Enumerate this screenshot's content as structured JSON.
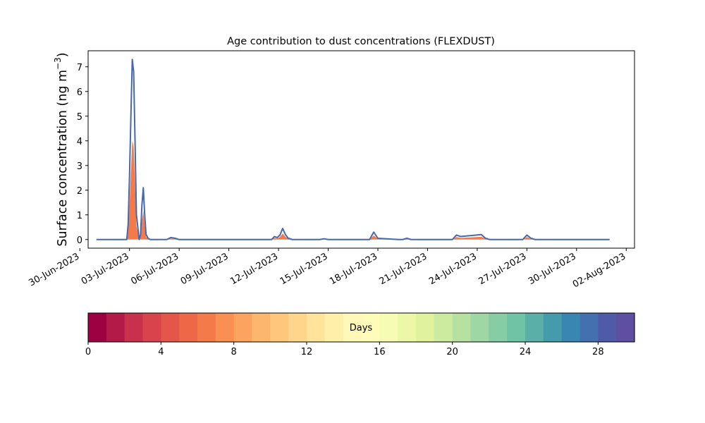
{
  "chart_data": {
    "type": "area",
    "title": "Age contribution to dust concentrations (FLEXDUST)",
    "ylabel": "Surface concentration (ng m",
    "ylabel_sup": "−3",
    "ylabel_close": ")",
    "ylim": [
      -0.35,
      7.65
    ],
    "yticks": [
      0,
      1,
      2,
      3,
      4,
      5,
      6,
      7
    ],
    "xlim": [
      "2023-06-30T12:00",
      "2023-08-02T12:00"
    ],
    "xtick_dates": [
      "2023-06-30",
      "2023-07-03",
      "2023-07-06",
      "2023-07-09",
      "2023-07-12",
      "2023-07-15",
      "2023-07-18",
      "2023-07-21",
      "2023-07-24",
      "2023-07-27",
      "2023-07-30",
      "2023-08-02"
    ],
    "xtick_labels": [
      "30-Jun-2023",
      "03-Jul-2023",
      "06-Jul-2023",
      "09-Jul-2023",
      "12-Jul-2023",
      "15-Jul-2023",
      "18-Jul-2023",
      "21-Jul-2023",
      "24-Jul-2023",
      "27-Jul-2023",
      "30-Jul-2023",
      "02-Aug-2023"
    ],
    "series_start": "2023-07-01T00:00",
    "series_end": "2023-08-01T00:00",
    "total": {
      "x": [
        "2023-07-01T00:00",
        "2023-07-02T20:00",
        "2023-07-02T22:00",
        "2023-07-03T00:00",
        "2023-07-03T02:00",
        "2023-07-03T04:00",
        "2023-07-03T06:00",
        "2023-07-03T08:00",
        "2023-07-03T10:00",
        "2023-07-03T14:00",
        "2023-07-03T16:00",
        "2023-07-03T18:00",
        "2023-07-03T20:00",
        "2023-07-03T22:00",
        "2023-07-04T00:00",
        "2023-07-04T03:00",
        "2023-07-04T06:00",
        "2023-07-05T06:00",
        "2023-07-05T12:00",
        "2023-07-05T18:00",
        "2023-07-06T00:00",
        "2023-07-11T14:00",
        "2023-07-11T18:00",
        "2023-07-11T22:00",
        "2023-07-12T02:00",
        "2023-07-12T06:00",
        "2023-07-12T10:00",
        "2023-07-12T14:00",
        "2023-07-12T20:00",
        "2023-07-13T06:00",
        "2023-07-14T12:00",
        "2023-07-14T18:00",
        "2023-07-15T00:00",
        "2023-07-17T12:00",
        "2023-07-17T18:00",
        "2023-07-18T00:00",
        "2023-07-19T06:00",
        "2023-07-19T12:00",
        "2023-07-19T18:00",
        "2023-07-20T00:00",
        "2023-07-22T12:00",
        "2023-07-22T18:00",
        "2023-07-23T00:00",
        "2023-07-24T06:00",
        "2023-07-24T12:00",
        "2023-07-24T18:00",
        "2023-07-25T00:00",
        "2023-07-25T06:00",
        "2023-07-25T12:00",
        "2023-07-26T18:00",
        "2023-07-27T00:00",
        "2023-07-27T06:00",
        "2023-07-27T12:00",
        "2023-08-01T00:00"
      ],
      "y": [
        0,
        0,
        0.6,
        2.6,
        5.0,
        7.3,
        6.8,
        4.0,
        1.0,
        0,
        0.2,
        1.4,
        2.1,
        1.0,
        0.2,
        0.05,
        0,
        0,
        0.08,
        0.05,
        0,
        0,
        0.12,
        0.08,
        0.18,
        0.45,
        0.2,
        0.05,
        0,
        0,
        0,
        0.03,
        0,
        0,
        0.3,
        0.05,
        0,
        0,
        0.05,
        0,
        0,
        0.18,
        0.12,
        0.2,
        0.05,
        0,
        0,
        0,
        0,
        0,
        0.18,
        0.05,
        0,
        0
      ]
    },
    "young_fraction": 0.55,
    "colormap": [
      "#9e0142",
      "#b31a47",
      "#c8304b",
      "#d9444c",
      "#e4564a",
      "#ee6847",
      "#f57a49",
      "#f98f53",
      "#fca45f",
      "#fdb76c",
      "#fec77b",
      "#fed58a",
      "#fee49b",
      "#feefa9",
      "#fff8b8",
      "#fffcba",
      "#f7fcb4",
      "#ecf7a7",
      "#e0f29c",
      "#cdeb9e",
      "#b7e1a1",
      "#9fd7a4",
      "#86cda5",
      "#6fc4a6",
      "#5aafa8",
      "#459aac",
      "#3a86b2",
      "#4470b0",
      "#4f5aa8",
      "#5e4fa2"
    ],
    "colorbar_label": "Days",
    "colorbar_range": [
      0,
      30
    ],
    "colorbar_ticks": [
      0,
      4,
      8,
      12,
      16,
      20,
      24,
      28
    ],
    "line_color": "#4568ae",
    "young_color": "#f57a49"
  }
}
